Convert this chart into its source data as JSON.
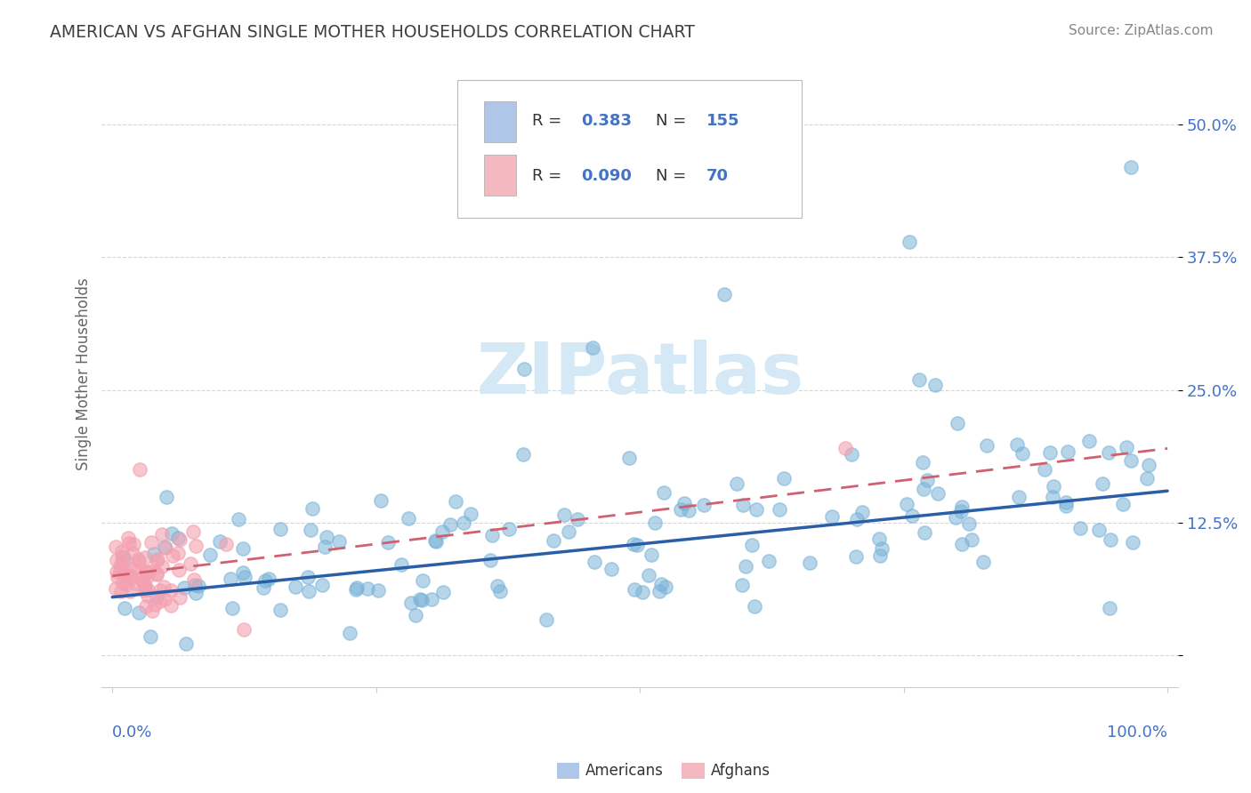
{
  "title": "AMERICAN VS AFGHAN SINGLE MOTHER HOUSEHOLDS CORRELATION CHART",
  "source": "Source: ZipAtlas.com",
  "ylabel": "Single Mother Households",
  "r_american": 0.383,
  "n_american": 155,
  "r_afghan": 0.09,
  "n_afghan": 70,
  "blue_dot_color": "#7ab3d8",
  "pink_dot_color": "#f4a0b0",
  "blue_line_color": "#2a5fa8",
  "pink_line_color": "#d06070",
  "legend_blue": "#aec6e8",
  "legend_pink": "#f4b8c1",
  "text_color": "#4472c4",
  "label_color": "#333333",
  "title_color": "#404040",
  "source_color": "#888888",
  "watermark_color": "#d5e8f5",
  "background_color": "#ffffff",
  "grid_color": "#cccccc",
  "axis_label_color": "#4472c4",
  "ytick_vals": [
    0.0,
    0.125,
    0.25,
    0.375,
    0.5
  ],
  "ytick_labels": [
    "",
    "12.5%",
    "25.0%",
    "37.5%",
    "50.0%"
  ],
  "xlim": [
    -0.01,
    1.01
  ],
  "ylim": [
    -0.03,
    0.56
  ],
  "am_trend_y0": 0.055,
  "am_trend_y1": 0.155,
  "af_trend_y0": 0.075,
  "af_trend_y1": 0.195
}
